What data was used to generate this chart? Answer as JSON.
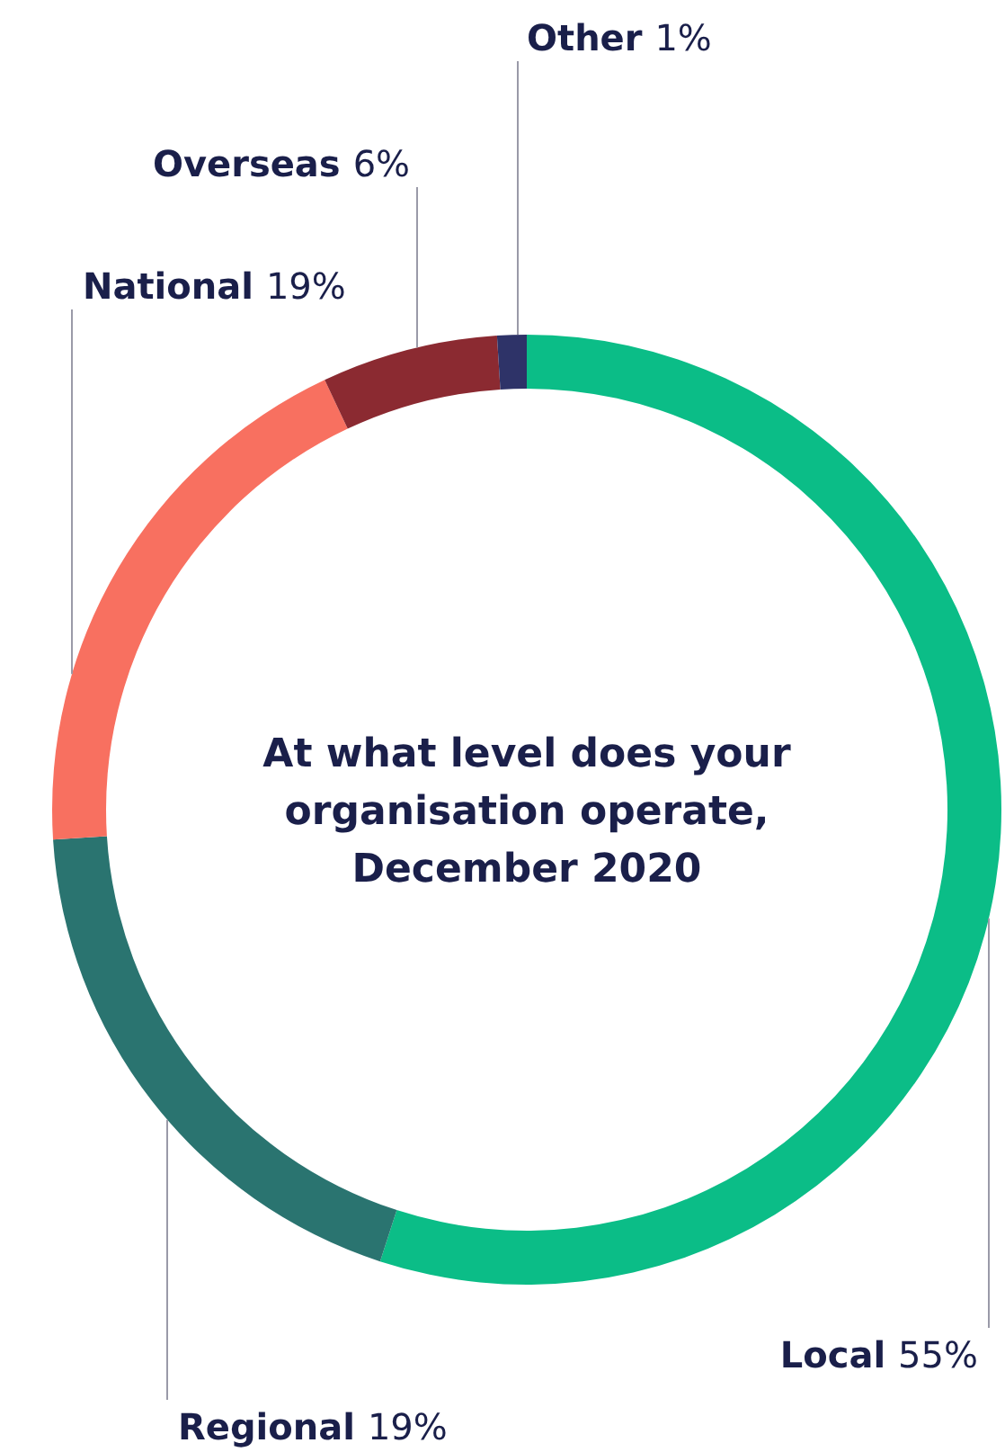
{
  "chart_data": {
    "type": "donut",
    "title": "At what level does your organisation operate, December 2020",
    "categories": [
      "Local",
      "Regional",
      "National",
      "Overseas",
      "Other"
    ],
    "values": [
      55,
      19,
      19,
      6,
      1
    ],
    "value_labels": [
      "55%",
      "19%",
      "19%",
      "6%",
      "1%"
    ],
    "colors": [
      "#0bbd87",
      "#2a7470",
      "#f87060",
      "#8b2a31",
      "#2e3368"
    ],
    "legend": false
  }
}
